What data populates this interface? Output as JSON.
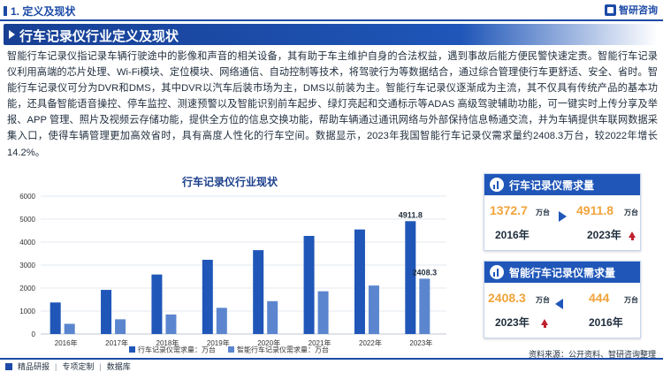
{
  "header": {
    "section": "1. 定义及现状",
    "logo": "智研咨询"
  },
  "banner": {
    "title": "行车记录仪行业定义及现状"
  },
  "paragraph": "智能行车记录仪指记录车辆行驶途中的影像和声音的相关设备，其有助于车主维护自身的合法权益，遇到事故后能方便民警快速定责。智能行车记录仪利用高端的芯片处理、Wi-Fi模块、定位模块、网络通信、自动控制等技术，将驾驶行为等数据结合，通过综合管理使行车更舒适、安全、省时。智能行车记录仪可分为DVR和DMS，其中DVR以汽车后装市场为主，DMS以前装为主。智能行车记录仪逐渐成为主流，其不仅具有传统产品的基本功能，还具备智能语音操控、停车监控、测速预警以及智能识别前车起步、绿灯亮起和交通标示等ADAS 高级驾驶辅助功能，可一键实时上传分享及举报、APP 管理、照片及视频云存储功能，提供全方位的信息交换功能，帮助车辆通过通讯网络与外部保持信息畅通交流，并为车辆提供车联网数据采集入口，使得车辆管理更加高效省时，具有高度人性化的行车空间。数据显示，2023年我国智能行车记录仪需求量约2408.3万台，较2022年增长14.2%。",
  "chart_data": {
    "type": "bar",
    "title": "行车记录仪行业现状",
    "categories": [
      "2016年",
      "2017年",
      "2018年",
      "2019年",
      "2020年",
      "2021年",
      "2022年",
      "2023年"
    ],
    "series": [
      {
        "name": "行车记录仪需求量：万台",
        "color": "#1f56b8",
        "values": [
          1372.7,
          1920,
          2590,
          3230,
          3650,
          4270,
          4550,
          4911.8
        ]
      },
      {
        "name": "智能行车记录仪需求量：万台",
        "color": "#5b86cf",
        "values": [
          444,
          640,
          850,
          1140,
          1430,
          1860,
          2110,
          2408.3
        ]
      }
    ],
    "data_labels": [
      {
        "series": 0,
        "index": 7,
        "text": "4911.8"
      },
      {
        "series": 1,
        "index": 7,
        "text": "2408.3"
      }
    ],
    "yticks": [
      0,
      1000,
      2000,
      3000,
      4000,
      5000,
      6000
    ],
    "ylim": [
      0,
      6000
    ],
    "grid": true,
    "legend": "bottom"
  },
  "cards": [
    {
      "title": "行车记录仪需求量",
      "left": {
        "value": "1372.7",
        "unit": "万台",
        "year": "2016年"
      },
      "right": {
        "value": "4911.8",
        "unit": "万台",
        "year": "2023年"
      }
    },
    {
      "title": "智能行车记录仪需求量",
      "left": {
        "value": "2408.3",
        "unit": "万台",
        "year": "2023年"
      },
      "right": {
        "value": "444",
        "unit": "万台",
        "year": "2016年"
      }
    }
  ],
  "footer": {
    "items": [
      "精品研报",
      "专项定制",
      "数据库"
    ],
    "source": "资料来源：公开资料、智研咨询整理"
  }
}
